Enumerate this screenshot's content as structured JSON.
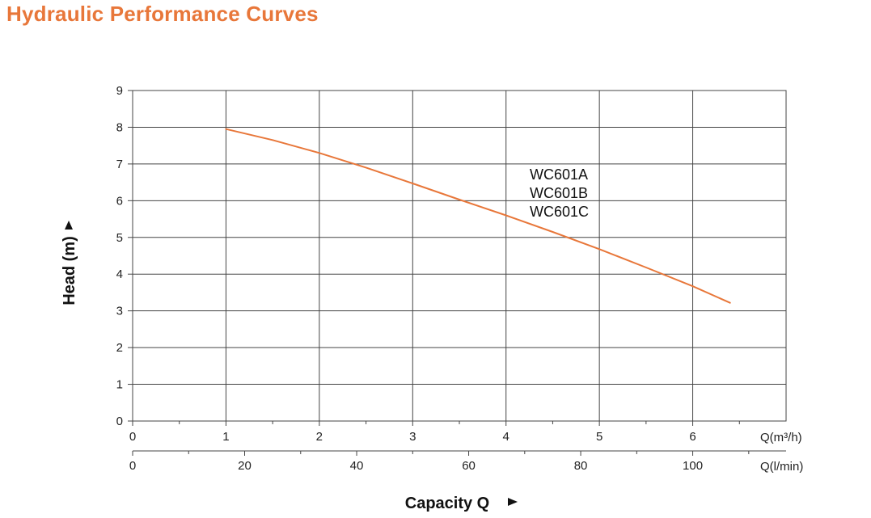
{
  "page": {
    "title": "Hydraulic Performance Curves"
  },
  "colors": {
    "title": "#e8773a",
    "curve": "#e8773a",
    "grid": "#444444",
    "text": "#222222"
  },
  "chart_data": {
    "type": "line",
    "title": "",
    "ylabel": "Head (m)",
    "xlabel": "Capacity Q",
    "x_unit_primary": "Q(m³/h)",
    "x_unit_secondary": "Q(l/min)",
    "xlim": [
      0,
      7
    ],
    "ylim": [
      0,
      9
    ],
    "x_ticks": [
      0,
      1,
      2,
      3,
      4,
      5,
      6
    ],
    "y_ticks": [
      0,
      1,
      2,
      3,
      4,
      5,
      6,
      7,
      8,
      9
    ],
    "secondary_x_ticks": [
      0,
      20,
      40,
      60,
      80,
      100
    ],
    "grid": true,
    "series": [
      {
        "labels": [
          "WC601A",
          "WC601B",
          "WC601C"
        ],
        "points": [
          [
            1.0,
            7.95
          ],
          [
            1.5,
            7.65
          ],
          [
            2.0,
            7.3
          ],
          [
            2.5,
            6.9
          ],
          [
            3.0,
            6.47
          ],
          [
            3.5,
            6.03
          ],
          [
            4.0,
            5.6
          ],
          [
            4.5,
            5.15
          ],
          [
            5.0,
            4.68
          ],
          [
            5.5,
            4.18
          ],
          [
            6.0,
            3.67
          ],
          [
            6.4,
            3.22
          ]
        ]
      }
    ]
  }
}
